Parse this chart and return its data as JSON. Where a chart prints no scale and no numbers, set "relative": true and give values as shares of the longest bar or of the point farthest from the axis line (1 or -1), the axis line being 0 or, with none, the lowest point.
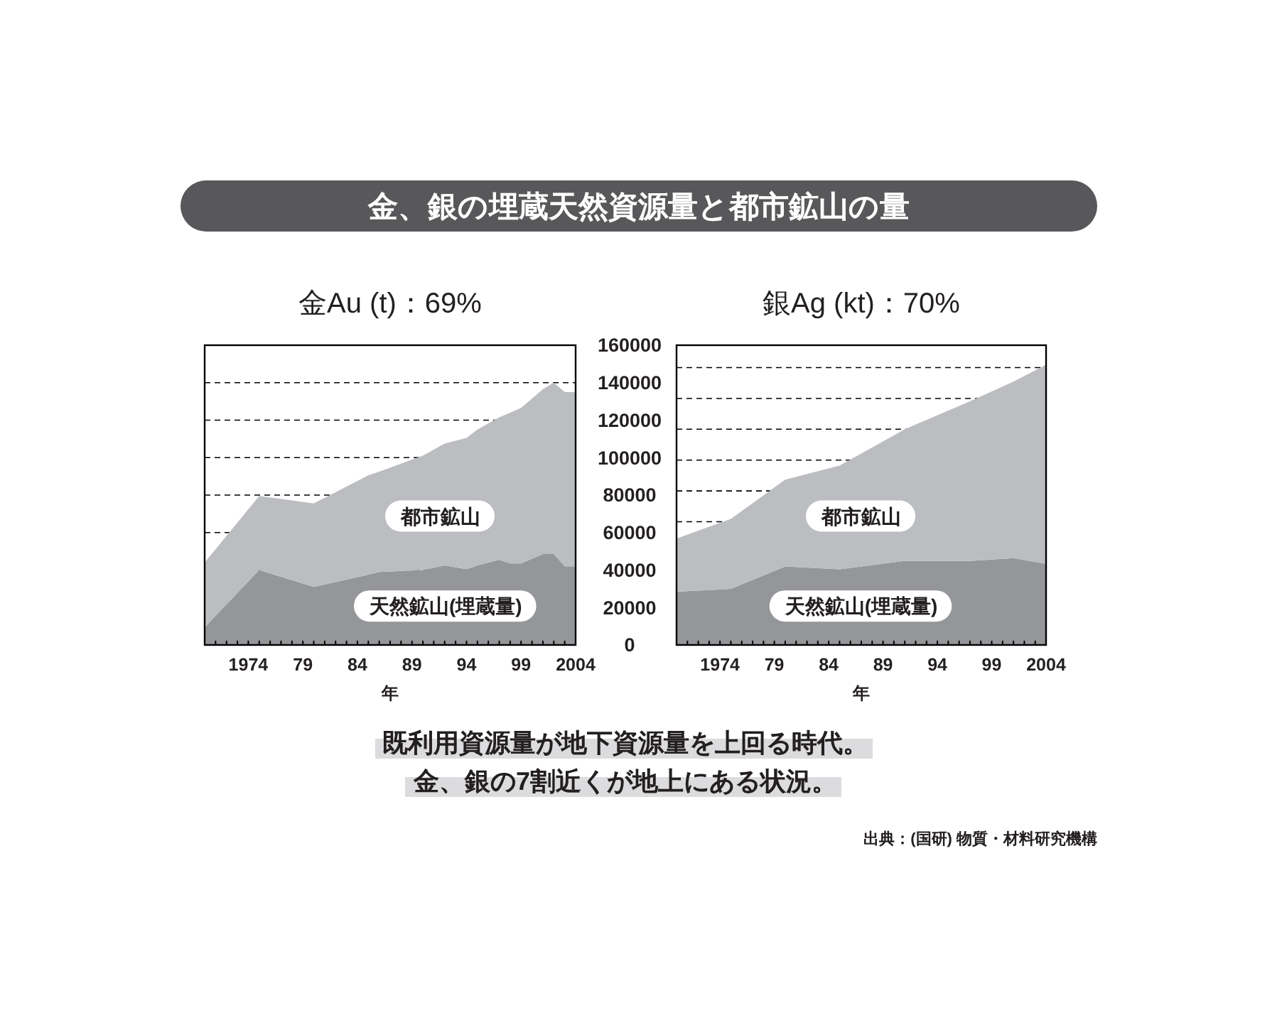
{
  "chart_data": [
    {
      "type": "other",
      "title": "金、銀の埋蔵天然資源量と都市鉱山の量"
    },
    {
      "type": "area",
      "title": "金Au (t)：69%",
      "xlabel": "年",
      "stacked": true,
      "grid": "y",
      "x": [
        1970,
        1975,
        1980,
        1985,
        1986,
        1990,
        1992,
        1994,
        1995,
        1997,
        1998,
        1999,
        2001,
        2002,
        2003,
        2004
      ],
      "series": [
        {
          "name": "天然鉱山(埋蔵量)",
          "color": "#959699",
          "values": [
            9500,
            40000,
            31000,
            37500,
            39000,
            40000,
            42500,
            40500,
            42500,
            45500,
            43500,
            43500,
            48500,
            48500,
            42000,
            42000
          ]
        },
        {
          "name": "都市鉱山",
          "color": "#bcbdc0",
          "values": [
            34500,
            39500,
            44500,
            53000,
            53500,
            61000,
            65000,
            70000,
            72500,
            76000,
            80500,
            83000,
            88000,
            91500,
            93000,
            93000
          ]
        }
      ],
      "xlim": [
        1970,
        2004
      ],
      "xticks": [
        {
          "value": 1971,
          "label": null
        },
        {
          "value": 1972,
          "label": null
        },
        {
          "value": 1973,
          "label": null
        },
        {
          "value": 1974,
          "label": "1974"
        },
        {
          "value": 1975,
          "label": null
        },
        {
          "value": 1976,
          "label": null
        },
        {
          "value": 1977,
          "label": null
        },
        {
          "value": 1978,
          "label": null
        },
        {
          "value": 1979,
          "label": "79"
        },
        {
          "value": 1980,
          "label": null
        },
        {
          "value": 1981,
          "label": null
        },
        {
          "value": 1982,
          "label": null
        },
        {
          "value": 1983,
          "label": null
        },
        {
          "value": 1984,
          "label": "84"
        },
        {
          "value": 1985,
          "label": null
        },
        {
          "value": 1986,
          "label": null
        },
        {
          "value": 1987,
          "label": null
        },
        {
          "value": 1988,
          "label": null
        },
        {
          "value": 1989,
          "label": "89"
        },
        {
          "value": 1990,
          "label": null
        },
        {
          "value": 1991,
          "label": null
        },
        {
          "value": 1992,
          "label": null
        },
        {
          "value": 1993,
          "label": null
        },
        {
          "value": 1994,
          "label": "94"
        },
        {
          "value": 1995,
          "label": null
        },
        {
          "value": 1996,
          "label": null
        },
        {
          "value": 1997,
          "label": null
        },
        {
          "value": 1998,
          "label": null
        },
        {
          "value": 1999,
          "label": "99"
        },
        {
          "value": 2000,
          "label": null
        },
        {
          "value": 2001,
          "label": null
        },
        {
          "value": 2002,
          "label": null
        },
        {
          "value": 2003,
          "label": null
        },
        {
          "value": 2004,
          "label": "2004"
        }
      ],
      "ylim": [
        0,
        160000
      ],
      "yticks": [
        0,
        20000,
        40000,
        60000,
        80000,
        100000,
        120000,
        140000,
        160000
      ]
    },
    {
      "type": "area",
      "title": "銀Ag (kt)：70%",
      "xlabel": "年",
      "stacked": true,
      "relative": true,
      "x": [
        1970,
        1975,
        1980,
        1985,
        1991,
        1997,
        2001,
        2004
      ],
      "series": [
        {
          "name": "天然鉱山(埋蔵量)",
          "color": "#959699",
          "values": [
            0.19,
            0.2,
            0.28,
            0.27,
            0.3,
            0.3,
            0.31,
            0.29
          ]
        },
        {
          "name": "都市鉱山",
          "color": "#bcbdc0",
          "values": [
            0.19,
            0.25,
            0.31,
            0.37,
            0.47,
            0.57,
            0.63,
            0.71
          ]
        }
      ],
      "xlim": [
        1970,
        2004
      ],
      "xticks": [
        {
          "value": 1971,
          "label": null
        },
        {
          "value": 1972,
          "label": null
        },
        {
          "value": 1973,
          "label": null
        },
        {
          "value": 1974,
          "label": "1974"
        },
        {
          "value": 1975,
          "label": null
        },
        {
          "value": 1976,
          "label": null
        },
        {
          "value": 1977,
          "label": null
        },
        {
          "value": 1978,
          "label": null
        },
        {
          "value": 1979,
          "label": "79"
        },
        {
          "value": 1980,
          "label": null
        },
        {
          "value": 1981,
          "label": null
        },
        {
          "value": 1982,
          "label": null
        },
        {
          "value": 1983,
          "label": null
        },
        {
          "value": 1984,
          "label": "84"
        },
        {
          "value": 1985,
          "label": null
        },
        {
          "value": 1986,
          "label": null
        },
        {
          "value": 1987,
          "label": null
        },
        {
          "value": 1988,
          "label": null
        },
        {
          "value": 1989,
          "label": "89"
        },
        {
          "value": 1990,
          "label": null
        },
        {
          "value": 1991,
          "label": null
        },
        {
          "value": 1992,
          "label": null
        },
        {
          "value": 1993,
          "label": null
        },
        {
          "value": 1994,
          "label": "94"
        },
        {
          "value": 1995,
          "label": null
        },
        {
          "value": 1996,
          "label": null
        },
        {
          "value": 1997,
          "label": null
        },
        {
          "value": 1998,
          "label": null
        },
        {
          "value": 1999,
          "label": "99"
        },
        {
          "value": 2000,
          "label": null
        },
        {
          "value": 2001,
          "label": null
        },
        {
          "value": 2002,
          "label": null
        },
        {
          "value": 2003,
          "label": null
        },
        {
          "value": 2004,
          "label": "2004"
        }
      ],
      "ref_lines": [
        {
          "axis": "y",
          "value": 0.44,
          "line_style": "dashed"
        },
        {
          "axis": "y",
          "value": 0.55,
          "line_style": "dashed"
        },
        {
          "axis": "y",
          "value": 0.66,
          "line_style": "dashed"
        },
        {
          "axis": "y",
          "value": 0.77,
          "line_style": "dashed"
        },
        {
          "axis": "y",
          "value": 0.88,
          "line_style": "dashed"
        },
        {
          "axis": "y",
          "value": 0.99,
          "line_style": "dashed"
        }
      ]
    },
    {
      "type": "other",
      "annotations": [
        "既利用資源量が地下資源量を上回る時代。",
        "金、銀の7割近くが地上にある状況。",
        "出典：(国研) 物質・材料研究機構"
      ]
    }
  ]
}
